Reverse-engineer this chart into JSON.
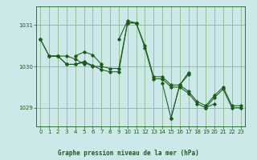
{
  "background_color": "#cce8e8",
  "plot_bg_color": "#cce8e8",
  "grid_color": "#88bb88",
  "line_color": "#1a5c1a",
  "title": "Graphe pression niveau de la mer (hPa)",
  "ylim": [
    1028.55,
    1031.45
  ],
  "yticks": [
    1029,
    1030,
    1031
  ],
  "xlim": [
    -0.5,
    23.5
  ],
  "xticks": [
    0,
    1,
    2,
    3,
    4,
    5,
    6,
    7,
    8,
    9,
    10,
    11,
    12,
    13,
    14,
    15,
    16,
    17,
    18,
    19,
    20,
    21,
    22,
    23
  ],
  "series": [
    [
      1030.65,
      1030.25,
      1030.25,
      1030.05,
      1030.05,
      1030.1,
      1030.0,
      1030.0,
      1029.95,
      1029.95,
      1031.05,
      1031.05,
      1030.5,
      1029.75,
      1029.75,
      1029.55,
      1029.55,
      1029.4,
      1029.15,
      1029.05,
      1029.3,
      1029.5,
      1029.05,
      1029.05
    ],
    [
      1030.65,
      1030.25,
      1030.25,
      1030.05,
      1030.05,
      1030.12,
      1030.02,
      1029.92,
      1029.87,
      1029.87,
      1031.05,
      1031.05,
      1030.45,
      1029.7,
      1029.7,
      1029.5,
      1029.5,
      1029.35,
      1029.1,
      1029.0,
      1029.25,
      1029.45,
      1029.0,
      1029.0
    ],
    [
      null,
      null,
      null,
      null,
      1030.25,
      1030.35,
      1030.28,
      1030.05,
      null,
      1030.65,
      1031.1,
      1031.05,
      null,
      null,
      1029.6,
      1028.75,
      1029.55,
      1029.8,
      null,
      1029.0,
      1029.1,
      null,
      null,
      null
    ],
    [
      null,
      null,
      null,
      null,
      null,
      null,
      null,
      null,
      null,
      null,
      null,
      null,
      null,
      null,
      null,
      1028.75,
      1029.55,
      1029.85,
      null,
      null,
      null,
      null,
      null,
      null
    ],
    [
      null,
      1030.25,
      1030.25,
      1030.25,
      1030.18,
      1030.05,
      null,
      null,
      null,
      null,
      null,
      null,
      null,
      null,
      null,
      null,
      null,
      null,
      null,
      null,
      null,
      null,
      null,
      null
    ]
  ]
}
